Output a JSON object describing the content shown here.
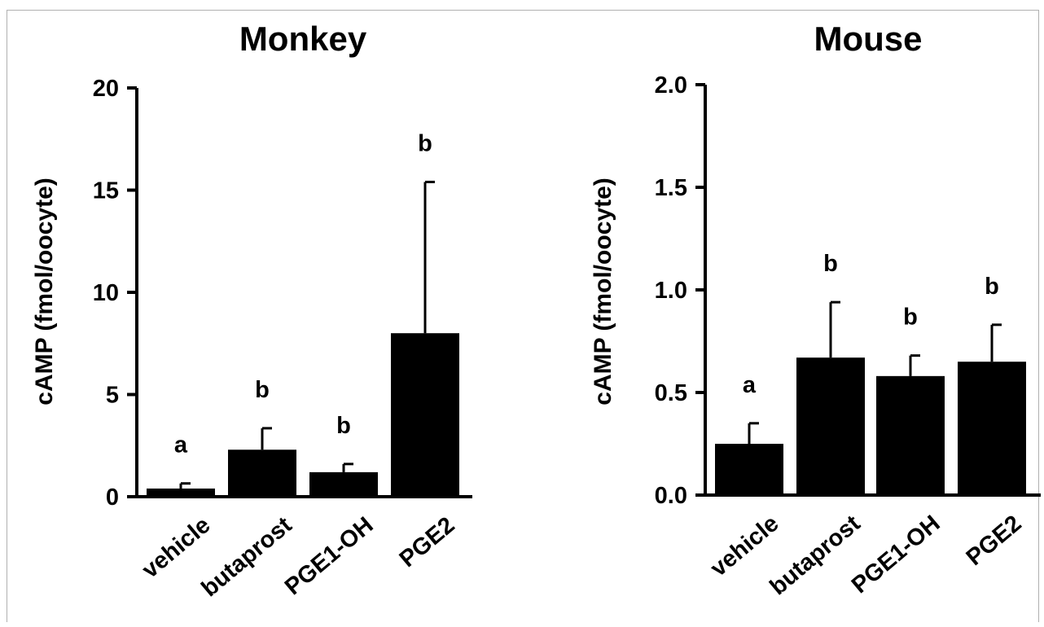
{
  "chart_data": [
    {
      "type": "bar",
      "title": "Monkey",
      "ylabel": "cAMP (fmol/oocyte)",
      "categories": [
        "vehicle",
        "butaprost",
        "PGE1-OH",
        "PGE2"
      ],
      "values": [
        0.4,
        2.3,
        1.2,
        8.0
      ],
      "errors": [
        0.25,
        1.05,
        0.4,
        7.4
      ],
      "significance": [
        "a",
        "b",
        "b",
        "b"
      ],
      "ylim": [
        0,
        20
      ],
      "yticks": [
        "0",
        "5",
        "10",
        "15",
        "20"
      ],
      "grid": false,
      "bar_color": "#000000"
    },
    {
      "type": "bar",
      "title": "Mouse",
      "ylabel": "cAMP (fmol/oocyte)",
      "categories": [
        "vehicle",
        "butaprost",
        "PGE1-OH",
        "PGE2"
      ],
      "values": [
        0.25,
        0.67,
        0.58,
        0.65
      ],
      "errors": [
        0.1,
        0.27,
        0.1,
        0.18
      ],
      "significance": [
        "a",
        "b",
        "b",
        "b"
      ],
      "ylim": [
        0,
        2.0
      ],
      "yticks": [
        "0.0",
        "0.5",
        "1.0",
        "1.5",
        "2.0"
      ],
      "grid": false,
      "bar_color": "#000000"
    }
  ]
}
